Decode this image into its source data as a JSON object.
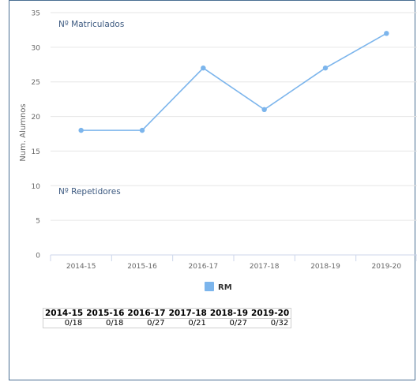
{
  "chart_data": {
    "type": "line",
    "categories": [
      "2014-15",
      "2015-16",
      "2016-17",
      "2017-18",
      "2018-19",
      "2019-20"
    ],
    "series": [
      {
        "name": "RM",
        "values": [
          18,
          18,
          27,
          21,
          27,
          32
        ],
        "color": "#7cb5ec"
      }
    ],
    "ylabel": "Num. Alumnos",
    "xlabel": "",
    "ylim": [
      0,
      35
    ],
    "yticks": [
      0,
      5,
      10,
      15,
      20,
      25,
      30,
      35
    ],
    "grid": true,
    "legend": "bottom-center",
    "annotations": [
      "Nº Matriculados",
      "Nº Repetidores"
    ]
  },
  "table": {
    "headers": [
      "2014-15",
      "2015-16",
      "2016-17",
      "2017-18",
      "2018-19",
      "2019-20"
    ],
    "rows": [
      [
        "0/18",
        "0/18",
        "0/27",
        "0/21",
        "0/27",
        "0/32"
      ]
    ]
  },
  "colors": {
    "frame": "#4a6f93",
    "annotation": "#3d5a80",
    "grid": "#e6e6e6"
  }
}
